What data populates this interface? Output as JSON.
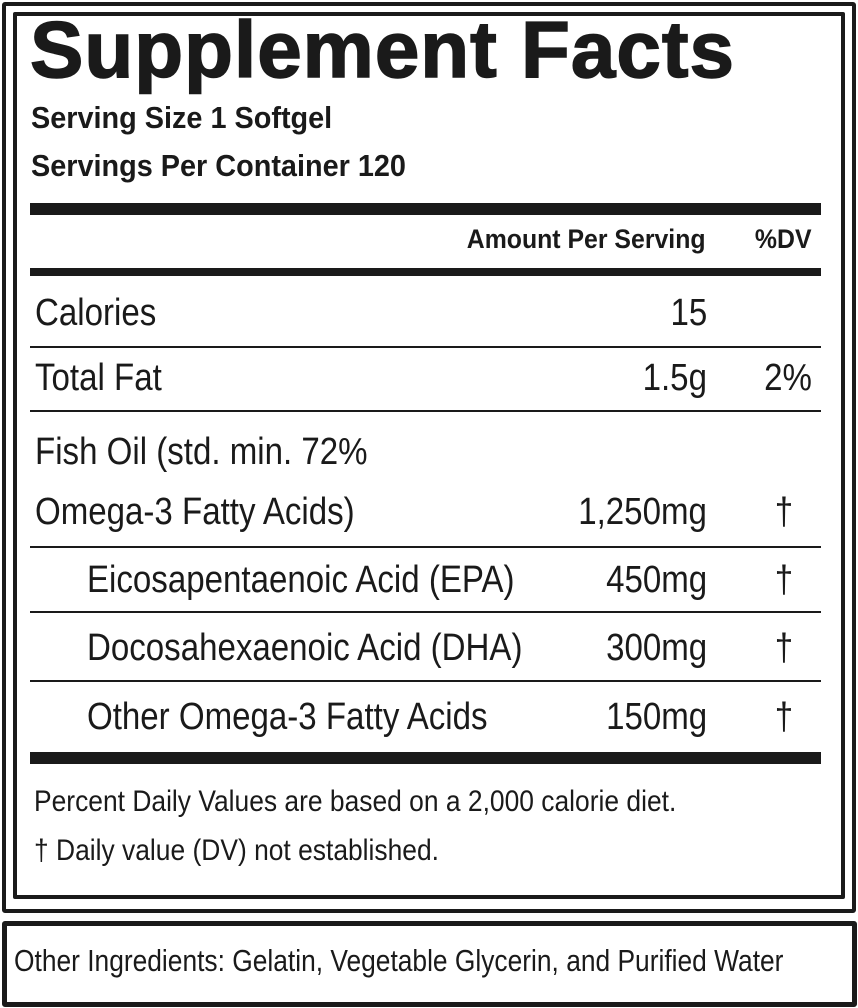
{
  "title": "Supplement Facts",
  "serving_size": "Serving Size 1 Softgel",
  "servings_per_container": "Servings Per Container 120",
  "header": {
    "amount": "Amount Per Serving",
    "dv": "%DV"
  },
  "rows": [
    {
      "name": "Calories",
      "amount": "15",
      "dv": ""
    },
    {
      "name": "Total Fat",
      "amount": "1.5g",
      "dv": "2%"
    },
    {
      "name": "Fish Oil (std. min. 72%",
      "name_line2": "Omega-3 Fatty Acids)",
      "amount": "1,250mg",
      "dv": "†"
    },
    {
      "name": "Eicosapentaenoic Acid (EPA)",
      "amount": "450mg",
      "dv": "†"
    },
    {
      "name": "Docosahexaenoic Acid (DHA)",
      "amount": "300mg",
      "dv": "†"
    },
    {
      "name": "Other Omega-3 Fatty Acids",
      "amount": "150mg",
      "dv": "†"
    }
  ],
  "footnotes": [
    "Percent Daily Values are based on a 2,000 calorie diet.",
    "† Daily value (DV) not established."
  ],
  "other_ingredients": "Other Ingredients: Gelatin, Vegetable Glycerin, and Purified Water"
}
